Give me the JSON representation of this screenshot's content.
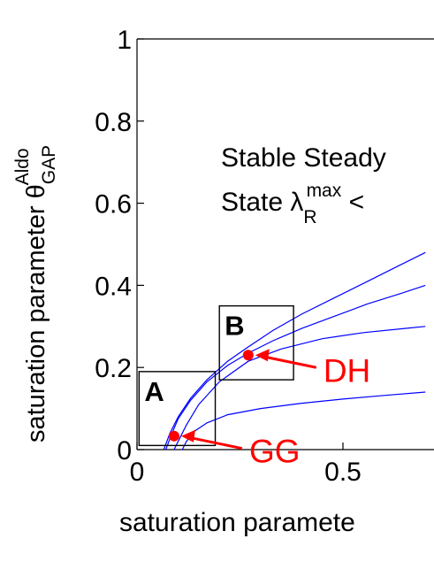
{
  "chart_data": {
    "type": "line",
    "xlabel": "saturation paramete",
    "ylabel_main": "saturation parameter θ",
    "ylabel_sup": "Aldo",
    "ylabel_sub": "GAP",
    "xlim": [
      0,
      0.7
    ],
    "ylim": [
      0,
      1
    ],
    "xticks": [
      0,
      0.5
    ],
    "xtick_labels": [
      "0",
      "0.5"
    ],
    "yticks": [
      0,
      0.2,
      0.4,
      0.6,
      0.8,
      1
    ],
    "ytick_labels": [
      "0",
      "0.2",
      "0.4",
      "0.6",
      "0.8",
      "1"
    ],
    "grid": false,
    "curve_color": "#0000ff",
    "highlight_color": "#ff0000",
    "series": [
      {
        "x": [
          0.065,
          0.08,
          0.1,
          0.13,
          0.17,
          0.22,
          0.27,
          0.33,
          0.4,
          0.48,
          0.56,
          0.64,
          0.7
        ],
        "y": [
          0.0,
          0.04,
          0.08,
          0.125,
          0.17,
          0.215,
          0.25,
          0.29,
          0.33,
          0.37,
          0.41,
          0.45,
          0.48
        ]
      },
      {
        "x": [
          0.07,
          0.085,
          0.1,
          0.13,
          0.17,
          0.22,
          0.27,
          0.33,
          0.4,
          0.48,
          0.56,
          0.64,
          0.7
        ],
        "y": [
          0.0,
          0.04,
          0.075,
          0.12,
          0.165,
          0.205,
          0.235,
          0.265,
          0.295,
          0.325,
          0.355,
          0.38,
          0.4
        ]
      },
      {
        "x": [
          0.09,
          0.1,
          0.12,
          0.15,
          0.2,
          0.27,
          0.35,
          0.45,
          0.55,
          0.65,
          0.7
        ],
        "y": [
          0.0,
          0.02,
          0.06,
          0.11,
          0.165,
          0.215,
          0.245,
          0.27,
          0.285,
          0.295,
          0.3
        ]
      },
      {
        "x": [
          0.11,
          0.12,
          0.14,
          0.17,
          0.22,
          0.3,
          0.4,
          0.5,
          0.6,
          0.7
        ],
        "y": [
          0.0,
          0.02,
          0.045,
          0.065,
          0.085,
          0.1,
          0.113,
          0.123,
          0.132,
          0.14
        ]
      }
    ],
    "boxes": [
      {
        "label": "A",
        "x0": 0.005,
        "x1": 0.19,
        "y0": 0.01,
        "y1": 0.19
      },
      {
        "label": "B",
        "x0": 0.2,
        "x1": 0.38,
        "y0": 0.17,
        "y1": 0.35
      }
    ],
    "points": [
      {
        "label": "GG",
        "x": 0.09,
        "y": 0.033
      },
      {
        "label": "DH",
        "x": 0.27,
        "y": 0.23
      }
    ],
    "annotation": {
      "line1": "Stable Steady",
      "line2_prefix": "State λ",
      "line2_sup": "max",
      "line2_sub": "R",
      "line2_suffix": " <"
    }
  }
}
